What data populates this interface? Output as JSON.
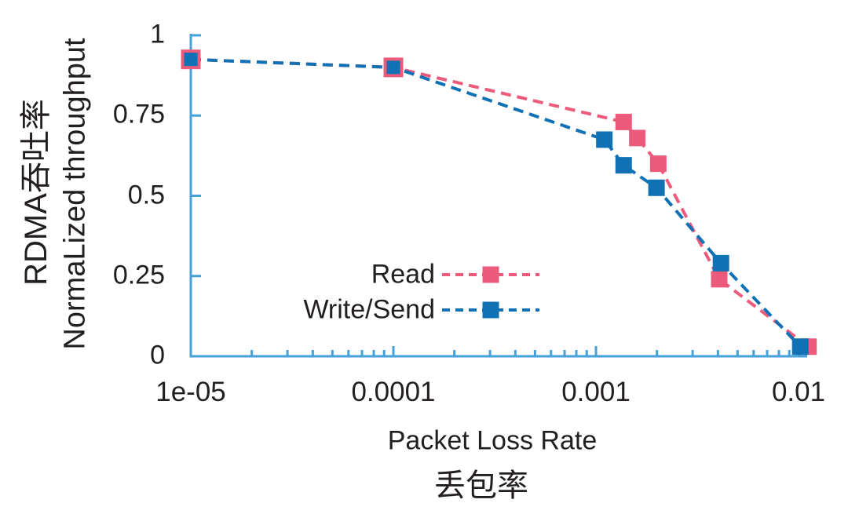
{
  "chart_data": {
    "type": "line",
    "title": "",
    "xlabel_en": "Packet Loss Rate",
    "xlabel_zh": "丢包率",
    "ylabel_zh": "RDMA吞吐率",
    "ylabel_en": "NormaLized throughput",
    "x_scale": "log",
    "y_scale": "linear",
    "xlim": [
      1e-05,
      0.012
    ],
    "ylim": [
      0,
      1
    ],
    "grid": false,
    "line_style": "dashed",
    "marker": "square",
    "legend_position": "inside-bottom-center",
    "x_tick_values": [
      1e-05,
      0.0001,
      0.001,
      0.01
    ],
    "x_tick_labels": [
      "1e-05",
      "0.0001",
      "0.001",
      "0.01"
    ],
    "y_tick_values": [
      0,
      0.25,
      0.5,
      0.75,
      1
    ],
    "y_tick_labels": [
      "0",
      "0.25",
      "0.5",
      "0.75",
      "1"
    ],
    "series": [
      {
        "name": "Read",
        "color": "#EC5B7B",
        "points": [
          [
            1e-05,
            0.925
          ],
          [
            0.0001,
            0.9
          ],
          [
            0.00137,
            0.73
          ],
          [
            0.0016,
            0.68
          ],
          [
            0.00203,
            0.6
          ],
          [
            0.00406,
            0.24
          ],
          [
            0.0112,
            0.03
          ]
        ]
      },
      {
        "name": "Write/Send",
        "color": "#1171B5",
        "points": [
          [
            1e-05,
            0.925
          ],
          [
            0.0001,
            0.9
          ],
          [
            0.0011,
            0.675
          ],
          [
            0.00137,
            0.595
          ],
          [
            0.00199,
            0.525
          ],
          [
            0.00414,
            0.29
          ],
          [
            0.0102,
            0.03
          ]
        ]
      }
    ],
    "colors": {
      "axis": "#45A1DA",
      "text": "#231F20",
      "read": "#EC5B7B",
      "write_send": "#1171B5"
    }
  }
}
